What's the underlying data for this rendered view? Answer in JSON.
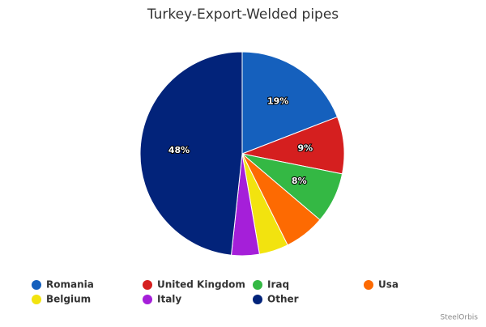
{
  "chart_data": {
    "type": "pie",
    "title": "Turkey-Export-Welded pipes",
    "categories": [
      "Romania",
      "United Kingdom",
      "Iraq",
      "Usa",
      "Belgium",
      "Italy",
      "Other"
    ],
    "values": [
      19,
      9,
      8,
      6.4,
      4.6,
      4.4,
      48
    ],
    "value_labels": [
      "19%",
      "9%",
      "8%",
      null,
      null,
      null,
      "48%"
    ],
    "colors": [
      "#1560bd",
      "#d51f1f",
      "#34b844",
      "#fd6a02",
      "#f2e30f",
      "#a51fd9",
      "#02237a"
    ],
    "credit": "SteelOrbis"
  }
}
